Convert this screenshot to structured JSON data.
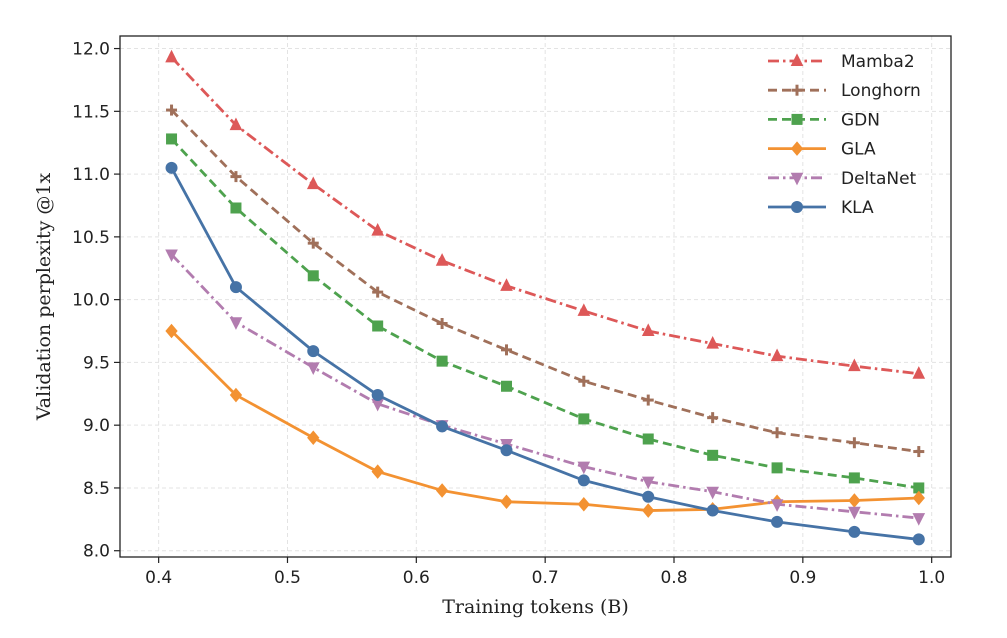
{
  "chart_data": {
    "type": "line",
    "title": "",
    "xlabel": "Training tokens (B)",
    "ylabel": "Validation perplexity @1x",
    "xlim": [
      0.37,
      1.015
    ],
    "ylim": [
      7.95,
      12.1
    ],
    "xticks": [
      0.4,
      0.5,
      0.6,
      0.7,
      0.8,
      0.9,
      1.0
    ],
    "xtick_labels": [
      "0.4",
      "0.5",
      "0.6",
      "0.7",
      "0.8",
      "0.9",
      "1.0"
    ],
    "yticks": [
      8.0,
      8.5,
      9.0,
      9.5,
      10.0,
      10.5,
      11.0,
      11.5,
      12.0
    ],
    "ytick_labels": [
      "8.0",
      "8.5",
      "9.0",
      "9.5",
      "10.0",
      "10.5",
      "11.0",
      "11.5",
      "12.0"
    ],
    "grid": true,
    "legend_position": "top-right",
    "x": [
      0.41,
      0.46,
      0.52,
      0.57,
      0.62,
      0.67,
      0.73,
      0.78,
      0.83,
      0.88,
      0.94,
      0.99
    ],
    "series": [
      {
        "name": "Mamba2",
        "color": "#dd5858",
        "dash": "dashdot",
        "marker": "triangle-up",
        "values": [
          11.93,
          11.39,
          10.92,
          10.55,
          10.31,
          10.11,
          9.91,
          9.75,
          9.65,
          9.55,
          9.47,
          9.41
        ]
      },
      {
        "name": "Longhorn",
        "color": "#a0705a",
        "dash": "dashed",
        "marker": "plus",
        "values": [
          11.51,
          10.98,
          10.45,
          10.06,
          9.81,
          9.6,
          9.35,
          9.2,
          9.06,
          8.94,
          8.86,
          8.79
        ]
      },
      {
        "name": "GDN",
        "color": "#4ea24e",
        "dash": "dashed",
        "marker": "square",
        "values": [
          11.28,
          10.73,
          10.19,
          9.79,
          9.51,
          9.31,
          9.05,
          8.89,
          8.76,
          8.66,
          8.58,
          8.5
        ]
      },
      {
        "name": "GLA",
        "color": "#f39232",
        "dash": "solid",
        "marker": "diamond",
        "values": [
          9.75,
          9.24,
          8.9,
          8.63,
          8.48,
          8.39,
          8.37,
          8.32,
          8.33,
          8.39,
          8.4,
          8.42
        ]
      },
      {
        "name": "DeltaNet",
        "color": "#b27caf",
        "dash": "dashdot",
        "marker": "triangle-down",
        "values": [
          10.36,
          9.82,
          9.46,
          9.17,
          9.0,
          8.85,
          8.67,
          8.55,
          8.47,
          8.37,
          8.31,
          8.26
        ]
      },
      {
        "name": "KLA",
        "color": "#4673a6",
        "dash": "solid",
        "marker": "circle",
        "values": [
          11.05,
          10.1,
          9.59,
          9.24,
          8.99,
          8.8,
          8.56,
          8.43,
          8.32,
          8.23,
          8.15,
          8.09
        ]
      }
    ]
  }
}
